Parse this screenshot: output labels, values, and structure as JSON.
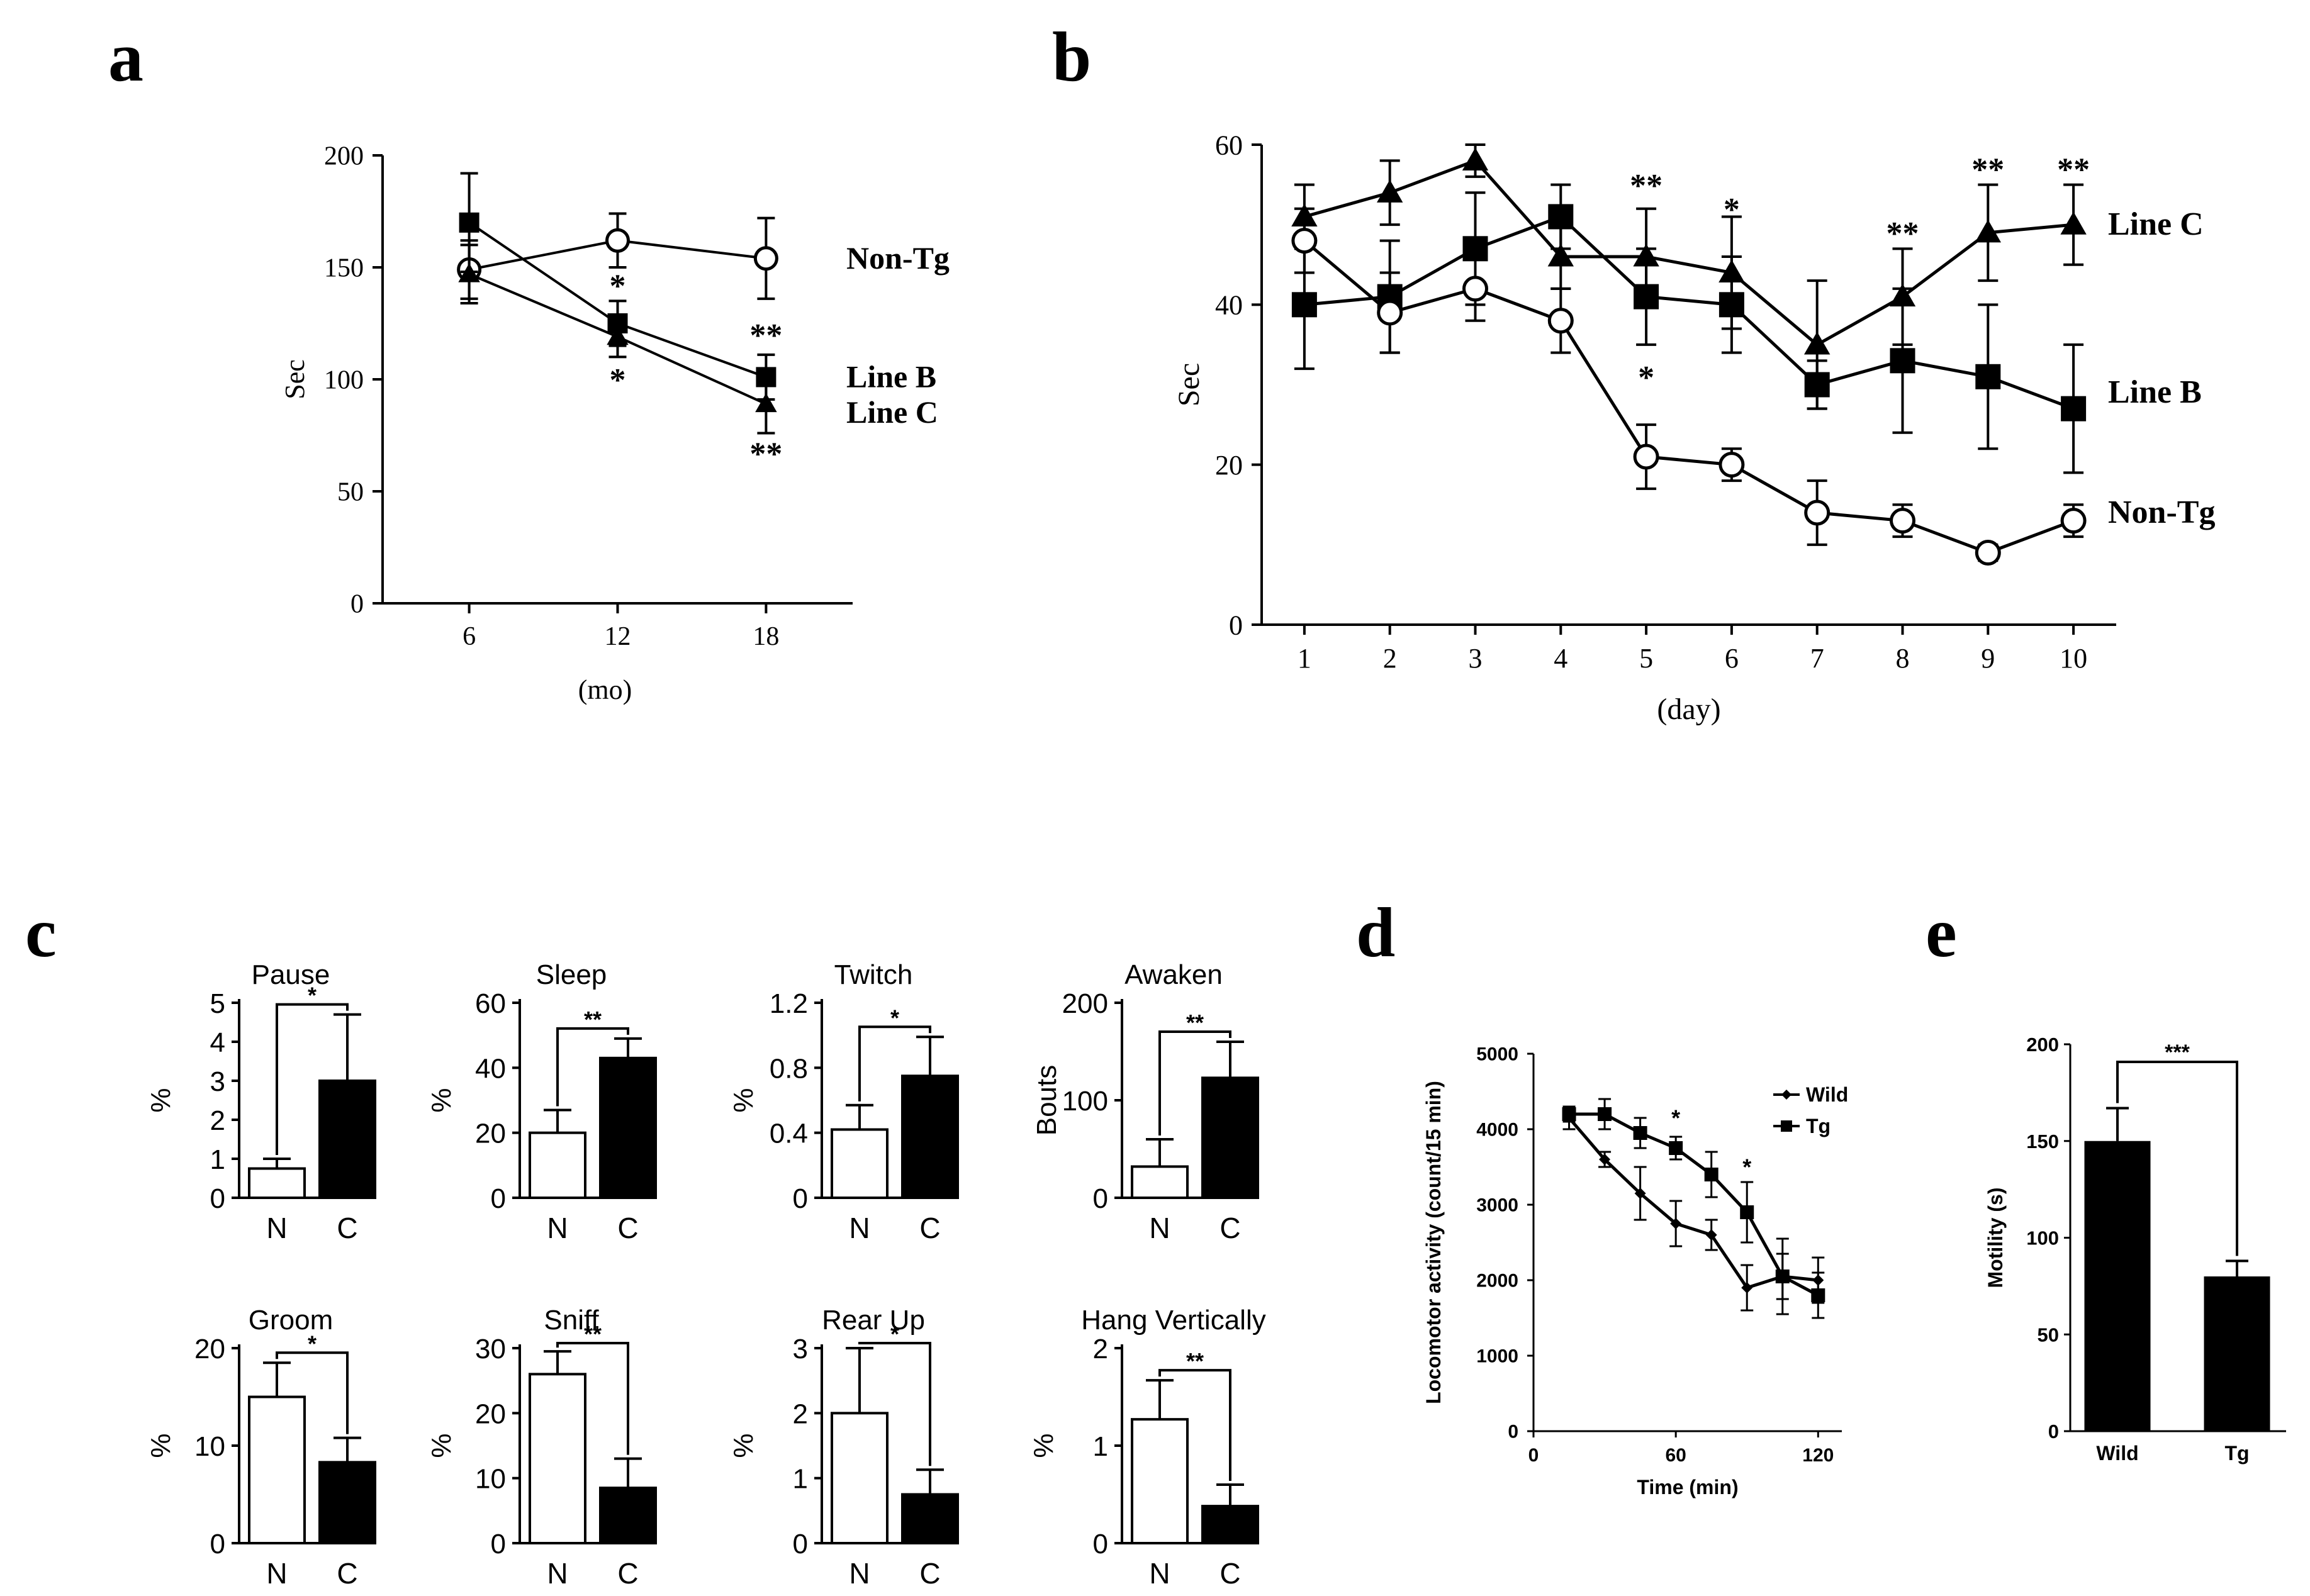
{
  "panel_letters": {
    "a": "a",
    "b": "b",
    "c": "c",
    "d": "d",
    "e": "e"
  },
  "chart_data": [
    {
      "id": "a",
      "type": "line",
      "x": [
        6,
        12,
        18
      ],
      "xticks": [
        "6",
        "12",
        "18"
      ],
      "yticks": [
        "0",
        "50",
        "100",
        "150",
        "200"
      ],
      "xlim": [
        2.5,
        21.5
      ],
      "ylim": [
        0,
        200
      ],
      "xlabel": "(mo)",
      "ylabel": "Sec",
      "grid": false,
      "series": [
        {
          "name": "Non-Tg",
          "marker": "circle-open",
          "values": [
            149,
            162,
            154
          ],
          "err": [
            13,
            12,
            18
          ]
        },
        {
          "name": "Line B",
          "marker": "square",
          "values": [
            170,
            125,
            101
          ],
          "err": [
            22,
            10,
            10
          ]
        },
        {
          "name": "Line C",
          "marker": "triangle",
          "values": [
            147,
            119,
            89
          ],
          "err": [
            13,
            9,
            13
          ]
        }
      ],
      "annotations": [
        {
          "text": "*",
          "x": 12,
          "y": 142
        },
        {
          "text": "*",
          "x": 12,
          "y": 100
        },
        {
          "text": "**",
          "x": 18,
          "y": 120
        },
        {
          "text": "**",
          "x": 18,
          "y": 67
        }
      ]
    },
    {
      "id": "b",
      "type": "line",
      "x": [
        1,
        2,
        3,
        4,
        5,
        6,
        7,
        8,
        9,
        10
      ],
      "xticks": [
        "1",
        "2",
        "3",
        "4",
        "5",
        "6",
        "7",
        "8",
        "9",
        "10"
      ],
      "yticks": [
        "0",
        "20",
        "40",
        "60"
      ],
      "xlim": [
        0.5,
        10.5
      ],
      "ylim": [
        0,
        60
      ],
      "xlabel": "(day)",
      "ylabel": "Sec",
      "grid": false,
      "series": [
        {
          "name": "Line C",
          "marker": "triangle",
          "values": [
            51,
            54,
            58,
            46,
            46,
            44,
            35,
            41,
            49,
            50
          ],
          "err": [
            4,
            4,
            2,
            4,
            6,
            7,
            8,
            6,
            6,
            5
          ]
        },
        {
          "name": "Line B",
          "marker": "square",
          "values": [
            40,
            41,
            47,
            51,
            41,
            40,
            30,
            33,
            31,
            27
          ],
          "err": [
            8,
            7,
            7,
            4,
            6,
            6,
            3,
            9,
            9,
            8
          ]
        },
        {
          "name": "Non-Tg",
          "marker": "circle-open",
          "values": [
            48,
            39,
            42,
            38,
            21,
            20,
            14,
            13,
            9,
            13
          ],
          "err": [
            4,
            5,
            4,
            4,
            4,
            2,
            4,
            2,
            1,
            2
          ]
        }
      ],
      "annotations": [
        {
          "text": "**",
          "x": 5,
          "y": 55
        },
        {
          "text": "*",
          "x": 5,
          "y": 31
        },
        {
          "text": "*",
          "x": 6,
          "y": 52
        },
        {
          "text": "**",
          "x": 8,
          "y": 49
        },
        {
          "text": "**",
          "x": 9,
          "y": 57
        },
        {
          "text": "**",
          "x": 10,
          "y": 57
        }
      ]
    },
    {
      "id": "c",
      "type": "bar",
      "subplots": [
        {
          "title": "Pause",
          "ylabel": "%",
          "ylim": [
            0,
            5
          ],
          "yticks": [
            "0",
            "1",
            "2",
            "3",
            "4",
            "5"
          ],
          "categories": [
            "N",
            "C"
          ],
          "values": [
            0.75,
            3.0
          ],
          "err": [
            0.25,
            1.7
          ],
          "sig": "*"
        },
        {
          "title": "Sleep",
          "ylabel": "%",
          "ylim": [
            0,
            60
          ],
          "yticks": [
            "0",
            "20",
            "40",
            "60"
          ],
          "categories": [
            "N",
            "C"
          ],
          "values": [
            20,
            43
          ],
          "err": [
            7,
            6
          ],
          "sig": "**"
        },
        {
          "title": "Twitch",
          "ylabel": "%",
          "ylim": [
            0,
            1.2
          ],
          "yticks": [
            "0",
            "0.4",
            "0.8",
            "1.2"
          ],
          "categories": [
            "N",
            "C"
          ],
          "values": [
            0.42,
            0.75
          ],
          "err": [
            0.15,
            0.24
          ],
          "sig": "*"
        },
        {
          "title": "Awaken",
          "ylabel": "Bouts",
          "ylim": [
            0,
            200
          ],
          "yticks": [
            "0",
            "100",
            "200"
          ],
          "categories": [
            "N",
            "C"
          ],
          "values": [
            32,
            123
          ],
          "err": [
            28,
            37
          ],
          "sig": "**"
        },
        {
          "title": "Groom",
          "ylabel": "%",
          "ylim": [
            0,
            20
          ],
          "yticks": [
            "0",
            "10",
            "20"
          ],
          "categories": [
            "N",
            "C"
          ],
          "values": [
            15,
            8.3
          ],
          "err": [
            3.5,
            2.5
          ],
          "sig": "*"
        },
        {
          "title": "Sniff",
          "ylabel": "%",
          "ylim": [
            0,
            30
          ],
          "yticks": [
            "0",
            "10",
            "20",
            "30"
          ],
          "categories": [
            "N",
            "C"
          ],
          "values": [
            26,
            8.5
          ],
          "err": [
            3.5,
            4.5
          ],
          "sig": "**"
        },
        {
          "title": "Rear Up",
          "ylabel": "%",
          "ylim": [
            0,
            3
          ],
          "yticks": [
            "0",
            "1",
            "2",
            "3"
          ],
          "categories": [
            "N",
            "C"
          ],
          "values": [
            2.0,
            0.75
          ],
          "err": [
            1.0,
            0.38
          ],
          "sig": "*"
        },
        {
          "title": "Hang Vertically",
          "ylabel": "%",
          "ylim": [
            0,
            2
          ],
          "yticks": [
            "0",
            "1",
            "2"
          ],
          "categories": [
            "N",
            "C"
          ],
          "values": [
            1.27,
            0.38
          ],
          "err": [
            0.4,
            0.22
          ],
          "sig": "**"
        }
      ]
    },
    {
      "id": "d",
      "type": "line",
      "x": [
        15,
        30,
        45,
        60,
        75,
        90,
        105,
        120
      ],
      "xticks": [
        "0",
        "60",
        "120"
      ],
      "xtick_values": [
        0,
        60,
        120
      ],
      "yticks": [
        "0",
        "1000",
        "2000",
        "3000",
        "4000",
        "5000"
      ],
      "xlim": [
        0,
        130
      ],
      "ylim": [
        0,
        5000
      ],
      "xlabel": "Time (min)",
      "ylabel": "Locomotor activity (count/15 min)",
      "legend": "top-right",
      "series": [
        {
          "name": "Wild",
          "marker": "diamond-small",
          "values": [
            4150,
            3600,
            3150,
            2750,
            2600,
            1900,
            2050,
            2000
          ],
          "err": [
            150,
            100,
            350,
            300,
            200,
            300,
            300,
            300
          ]
        },
        {
          "name": "Tg",
          "marker": "square",
          "values": [
            4200,
            4200,
            3950,
            3750,
            3400,
            2900,
            2050,
            1800
          ],
          "err": [
            100,
            200,
            200,
            150,
            300,
            400,
            500,
            300
          ]
        }
      ],
      "annotations": [
        {
          "text": "*",
          "x": 60,
          "y": 4150
        },
        {
          "text": "*",
          "x": 90,
          "y": 3500
        }
      ]
    },
    {
      "id": "e",
      "type": "bar",
      "categories": [
        "Wild",
        "Tg"
      ],
      "values": [
        150,
        80
      ],
      "err": [
        17,
        8
      ],
      "ylim": [
        0,
        200
      ],
      "yticks": [
        "0",
        "50",
        "100",
        "150",
        "200"
      ],
      "xlabel": "",
      "ylabel": "Motility (s)",
      "sig": "***"
    }
  ]
}
